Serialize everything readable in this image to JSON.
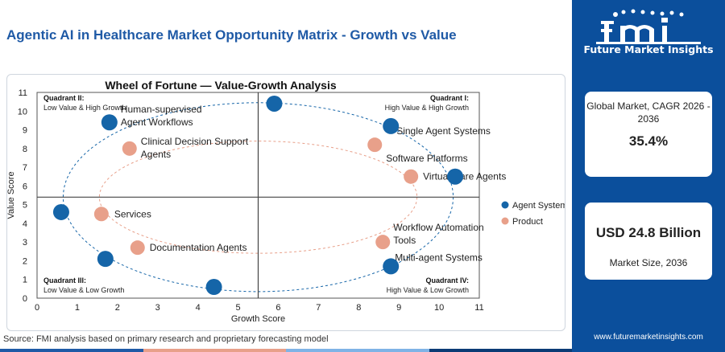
{
  "header": {
    "title": "Agentic AI in Healthcare Market Opportunity Matrix - Growth vs Value"
  },
  "footer": {
    "source": "Source: FMI analysis based on primary research and proprietary forecasting model"
  },
  "sidebar": {
    "logo_text": "Future Market Insights",
    "cagr_label": "Global Market, CAGR 2026 - 2036",
    "cagr_value": "35.4%",
    "size_value": "USD 24.8 Billion",
    "size_label": "Market Size, 2036",
    "url": "www.futuremarketinsights.com"
  },
  "colors": {
    "title": "#1f5aa6",
    "agent": "#1565a8",
    "product": "#e8a08a",
    "sidebar_bg": "#0b4f9c",
    "bar": [
      "#1f5aa6",
      "#e8a08a",
      "#7fb3e6",
      "#0b3b75"
    ]
  },
  "chart_data": {
    "type": "scatter",
    "title": "Wheel of Fortune — Value-Growth Analysis",
    "xlabel": "Growth Score",
    "ylabel": "Value Score",
    "xlim": [
      0,
      11
    ],
    "ylim": [
      0,
      11
    ],
    "xticks": [
      "0",
      "1",
      "2",
      "3",
      "4",
      "5",
      "6",
      "7",
      "8",
      "9",
      "10",
      "11"
    ],
    "yticks": [
      "0",
      "1",
      "2",
      "3",
      "4",
      "5",
      "6",
      "7",
      "8",
      "9",
      "10",
      "11"
    ],
    "divider": {
      "x": 5.5,
      "y": 5.4
    },
    "legend_position": "right",
    "quadrants": [
      {
        "name": "Quadrant II:",
        "desc": "Low Value & High Growth",
        "position": "top-left"
      },
      {
        "name": "Quadrant I:",
        "desc": "High Value & High Growth",
        "position": "top-right"
      },
      {
        "name": "Quadrant III:",
        "desc": "Low Value & Low Growth",
        "position": "bottom-left"
      },
      {
        "name": "Quadrant IV:",
        "desc": "High Value & Low Growth",
        "position": "bottom-right"
      }
    ],
    "series": [
      {
        "name": "Agent System",
        "points": [
          {
            "x": 1.8,
            "y": 9.4,
            "label": "Human-supervised Agent Workflows"
          },
          {
            "x": 5.9,
            "y": 10.4,
            "label": ""
          },
          {
            "x": 8.8,
            "y": 9.2,
            "label": "Single Agent Systems"
          },
          {
            "x": 10.4,
            "y": 6.5,
            "label": ""
          },
          {
            "x": 0.6,
            "y": 4.6,
            "label": ""
          },
          {
            "x": 1.7,
            "y": 2.1,
            "label": ""
          },
          {
            "x": 4.4,
            "y": 0.6,
            "label": ""
          },
          {
            "x": 8.8,
            "y": 1.7,
            "label": "Multi-agent Systems"
          }
        ]
      },
      {
        "name": "Product",
        "points": [
          {
            "x": 2.3,
            "y": 8.0,
            "label": "Clinical Decision Support Agents"
          },
          {
            "x": 8.4,
            "y": 8.2,
            "label": "Software Platforms"
          },
          {
            "x": 9.3,
            "y": 6.5,
            "label": "Virtual Care Agents"
          },
          {
            "x": 1.6,
            "y": 4.5,
            "label": "Services"
          },
          {
            "x": 2.5,
            "y": 2.7,
            "label": "Documentation Agents"
          },
          {
            "x": 8.6,
            "y": 3.0,
            "label": "Workflow Automation Tools"
          }
        ]
      }
    ]
  }
}
